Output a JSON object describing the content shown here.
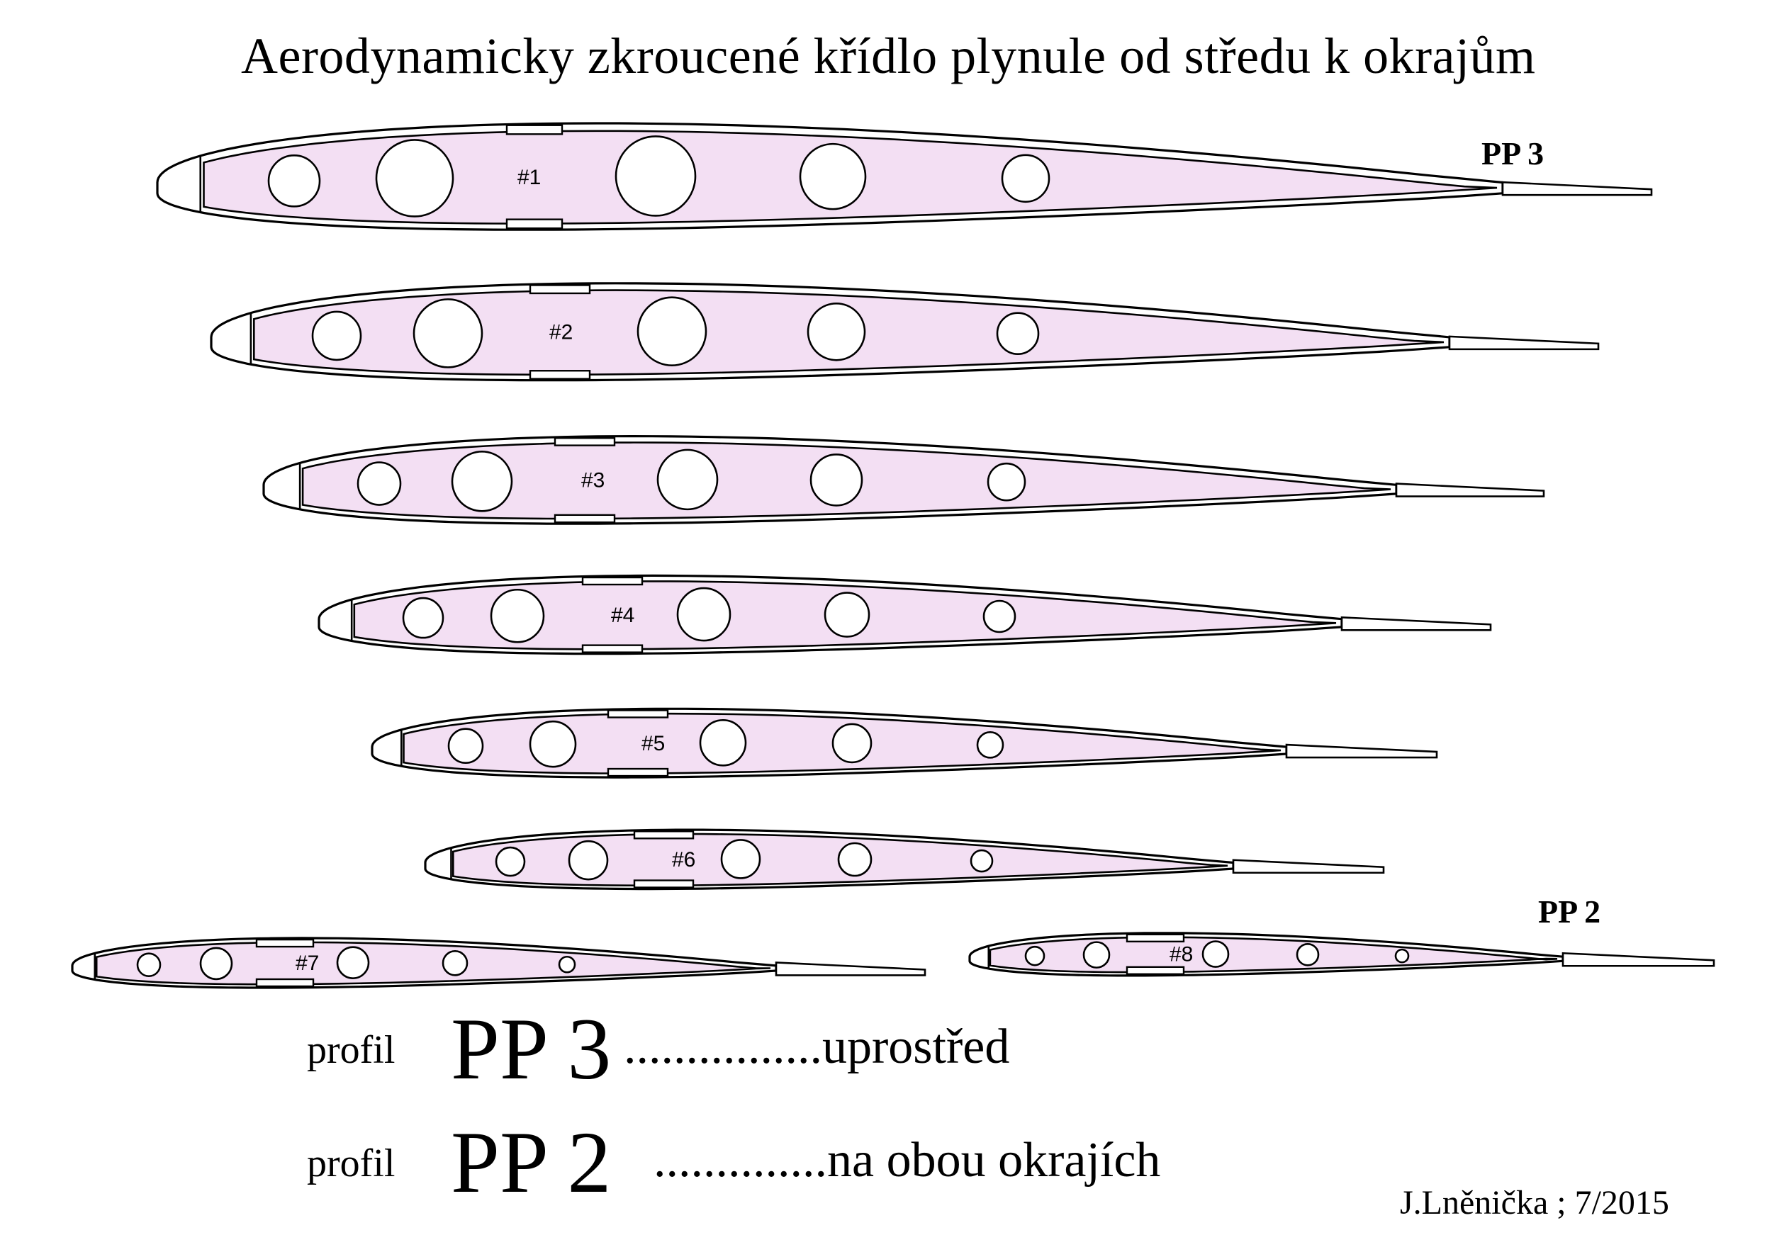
{
  "title": "Aerodynamicky zkroucené křídlo plynule od středu k okrajům",
  "profile_marks": {
    "top": "PP 3",
    "bottom": "PP 2"
  },
  "ribs": [
    "#1",
    "#2",
    "#3",
    "#4",
    "#5",
    "#6",
    "#7",
    "#8"
  ],
  "legend": [
    {
      "word": "profil",
      "code": "PP 3",
      "description": "................uprostřed"
    },
    {
      "word": "profil",
      "code": "PP  2",
      "description": "..............na obou okrajích"
    }
  ],
  "signature": "J.Lněnička ; 7/2015",
  "colors": {
    "rib_fill": "#f3dff3",
    "outline": "#000000"
  }
}
